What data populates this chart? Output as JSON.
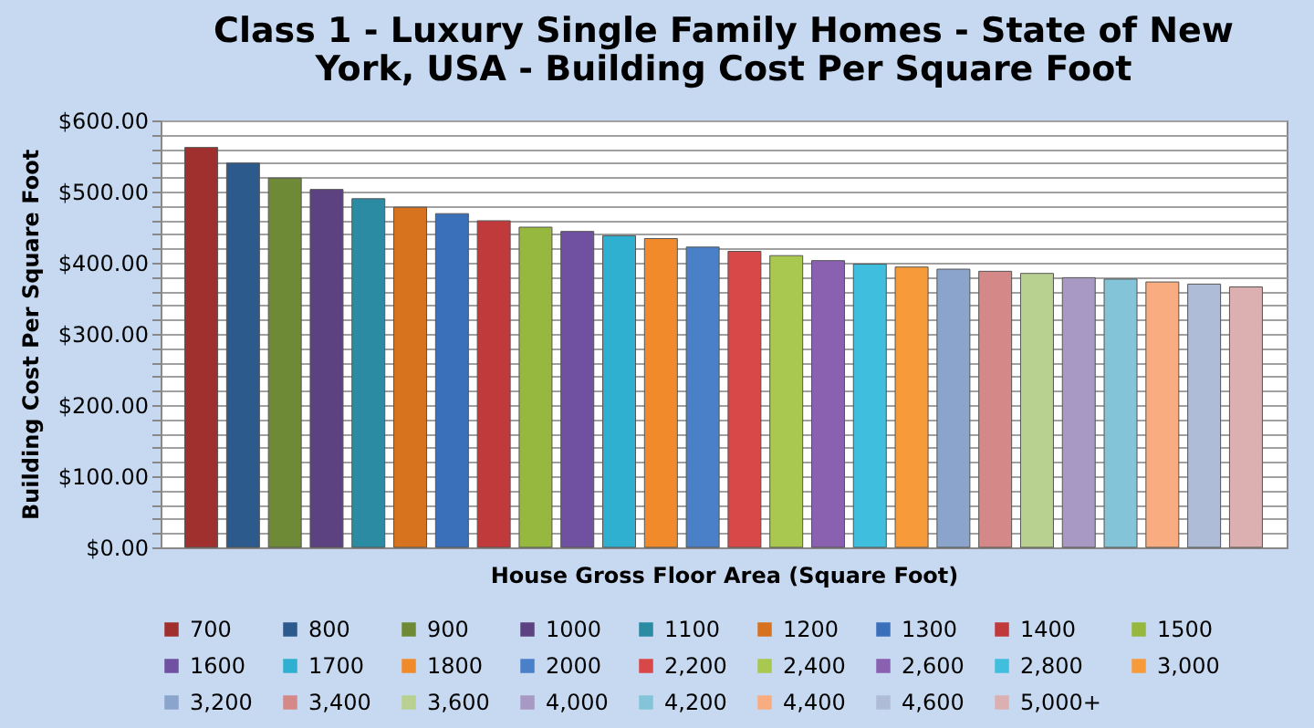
{
  "chart_data": {
    "type": "bar",
    "title": "Class 1 - Luxury Single Family Homes  - State of New York, USA - Building Cost Per Square Foot",
    "xlabel": "House Gross Floor Area (Square Foot)",
    "ylabel": "Building Cost Per Square Foot",
    "categories": [
      null
    ],
    "series": [
      {
        "name": "700",
        "color": "#a0302e",
        "values": [
          562
        ]
      },
      {
        "name": "800",
        "color": "#2c5a8c",
        "values": [
          540
        ]
      },
      {
        "name": "900",
        "color": "#6f8a36",
        "values": [
          519
        ]
      },
      {
        "name": "1000",
        "color": "#5c4280",
        "values": [
          503
        ]
      },
      {
        "name": "1100",
        "color": "#2a8ba3",
        "values": [
          490
        ]
      },
      {
        "name": "1200",
        "color": "#d7731f",
        "values": [
          478
        ]
      },
      {
        "name": "1300",
        "color": "#3a6fba",
        "values": [
          469
        ]
      },
      {
        "name": "1400",
        "color": "#c0393b",
        "values": [
          459
        ]
      },
      {
        "name": "1500",
        "color": "#96b83e",
        "values": [
          450
        ]
      },
      {
        "name": "1600",
        "color": "#7050a0",
        "values": [
          444
        ]
      },
      {
        "name": "1700",
        "color": "#30b0d0",
        "values": [
          438
        ]
      },
      {
        "name": "1800",
        "color": "#f08a2a",
        "values": [
          434
        ]
      },
      {
        "name": "2000",
        "color": "#4a80c8",
        "values": [
          422
        ]
      },
      {
        "name": "2,200",
        "color": "#d84848",
        "values": [
          416
        ]
      },
      {
        "name": "2,400",
        "color": "#a8c850",
        "values": [
          410
        ]
      },
      {
        "name": "2,600",
        "color": "#8a60b0",
        "values": [
          403
        ]
      },
      {
        "name": "2,800",
        "color": "#40bedd",
        "values": [
          398
        ]
      },
      {
        "name": "3,000",
        "color": "#f79a3a",
        "values": [
          394
        ]
      },
      {
        "name": "3,200",
        "color": "#8aa4cc",
        "values": [
          391
        ]
      },
      {
        "name": "3,400",
        "color": "#d48888",
        "values": [
          388
        ]
      },
      {
        "name": "3,600",
        "color": "#b8d090",
        "values": [
          385
        ]
      },
      {
        "name": "4,000",
        "color": "#a898c4",
        "values": [
          379
        ]
      },
      {
        "name": "4,200",
        "color": "#84c4d8",
        "values": [
          377
        ]
      },
      {
        "name": "4,400",
        "color": "#f8ac80",
        "values": [
          373
        ]
      },
      {
        "name": "4,600",
        "color": "#aebcd8",
        "values": [
          370
        ]
      },
      {
        "name": "5,000+",
        "color": "#dcb0b0",
        "values": [
          366
        ]
      }
    ],
    "ylim": [
      0,
      600
    ],
    "yticks": [
      {
        "value": 0,
        "label": "$0.00"
      },
      {
        "value": 20,
        "label": null
      },
      {
        "value": 40,
        "label": null
      },
      {
        "value": 60,
        "label": null
      },
      {
        "value": 80,
        "label": null
      },
      {
        "value": 100,
        "label": "$100.00"
      },
      {
        "value": 120,
        "label": null
      },
      {
        "value": 140,
        "label": null
      },
      {
        "value": 160,
        "label": null
      },
      {
        "value": 180,
        "label": null
      },
      {
        "value": 200,
        "label": "$200.00"
      },
      {
        "value": 220,
        "label": null
      },
      {
        "value": 240,
        "label": null
      },
      {
        "value": 260,
        "label": null
      },
      {
        "value": 280,
        "label": null
      },
      {
        "value": 300,
        "label": "$300.00"
      },
      {
        "value": 320,
        "label": null
      },
      {
        "value": 340,
        "label": null
      },
      {
        "value": 360,
        "label": null
      },
      {
        "value": 380,
        "label": null
      },
      {
        "value": 400,
        "label": "$400.00"
      },
      {
        "value": 420,
        "label": null
      },
      {
        "value": 440,
        "label": null
      },
      {
        "value": 460,
        "label": null
      },
      {
        "value": 480,
        "label": null
      },
      {
        "value": 500,
        "label": "$500.00"
      },
      {
        "value": 520,
        "label": null
      },
      {
        "value": 540,
        "label": null
      },
      {
        "value": 560,
        "label": null
      },
      {
        "value": 580,
        "label": null
      },
      {
        "value": 600,
        "label": "$600.00"
      }
    ],
    "grid": true,
    "legend": "bottom",
    "tick_labels": "y"
  }
}
